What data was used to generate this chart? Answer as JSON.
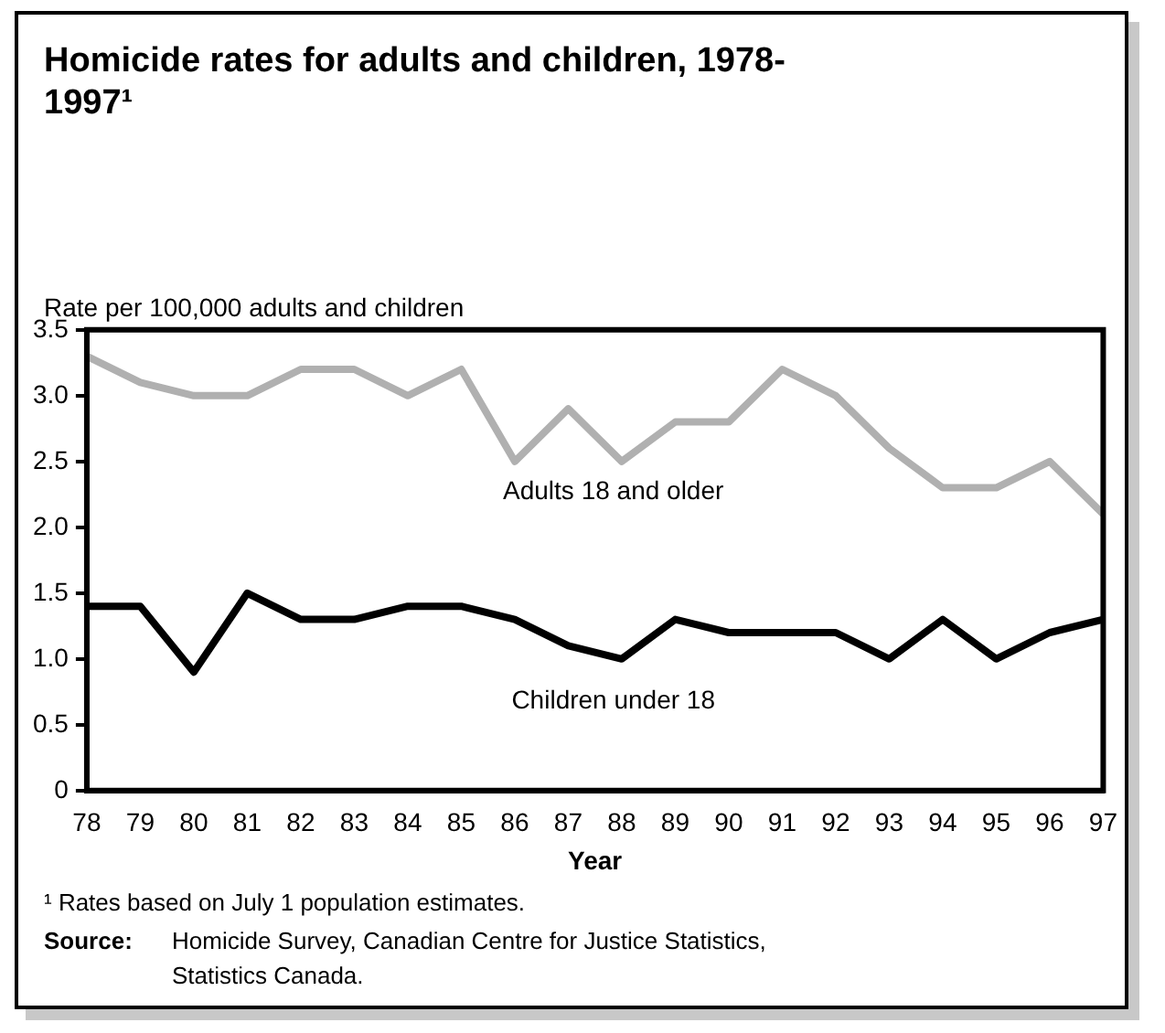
{
  "chart_data": {
    "type": "line",
    "title": "Homicide rates for adults and children, 1978-1997¹",
    "ylabel": "Rate per 100,000 adults and children",
    "xlabel": "Year",
    "categories": [
      "78",
      "79",
      "80",
      "81",
      "82",
      "83",
      "84",
      "85",
      "86",
      "87",
      "88",
      "89",
      "90",
      "91",
      "92",
      "93",
      "94",
      "95",
      "96",
      "97"
    ],
    "series": [
      {
        "name": "Adults 18 and older",
        "color": "#b0b0b0",
        "values": [
          3.3,
          3.1,
          3.0,
          3.0,
          3.2,
          3.2,
          3.0,
          3.2,
          2.5,
          2.9,
          2.5,
          2.8,
          2.8,
          3.2,
          3.0,
          2.6,
          2.3,
          2.3,
          2.5,
          2.1
        ]
      },
      {
        "name": "Children under 18",
        "color": "#000000",
        "values": [
          1.4,
          1.4,
          0.9,
          1.5,
          1.3,
          1.3,
          1.4,
          1.4,
          1.3,
          1.1,
          1.0,
          1.3,
          1.2,
          1.2,
          1.2,
          1.0,
          1.3,
          1.0,
          1.2,
          1.3
        ]
      }
    ],
    "ylim": [
      0,
      3.5
    ],
    "yticks": [
      0,
      0.5,
      {
        "value": 1,
        "label": "1.0"
      },
      1.5,
      {
        "value": 2,
        "label": "2.0"
      },
      2.5,
      {
        "value": 3,
        "label": "3.0"
      },
      3.5
    ],
    "grid": false,
    "legend": false,
    "marker": "none",
    "line_style": "solid",
    "annotations": [
      "¹ Rates based on July 1 population estimates.",
      "Source: Homicide Survey, Canadian Centre for Justice Statistics, Statistics Canada."
    ]
  }
}
